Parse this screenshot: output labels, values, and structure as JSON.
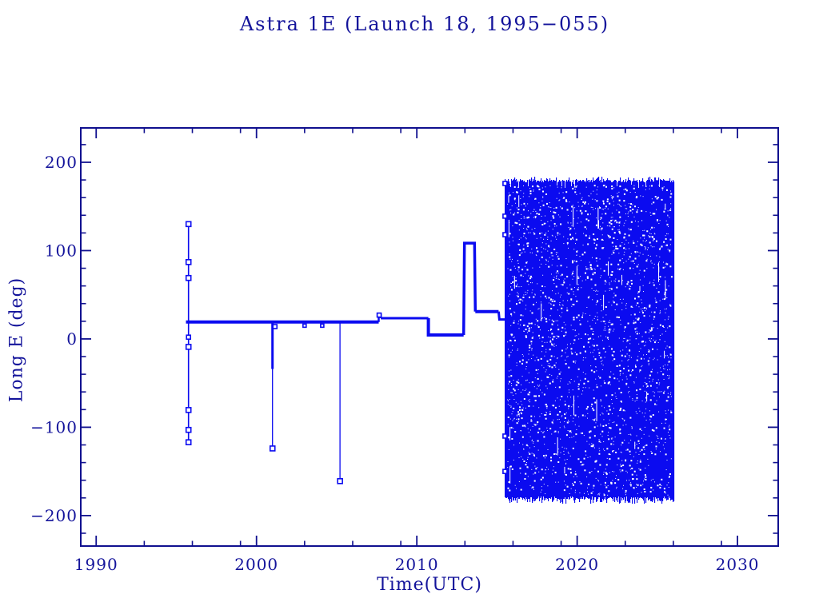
{
  "colors": {
    "background": "#ffffff",
    "ink": "#14149b",
    "frame": "#10108f",
    "data": "#0b0bf0",
    "marker_fill": "#ffffff"
  },
  "chart_data": {
    "type": "line",
    "title": "Astra 1E (Launch 18, 1995−055)",
    "xlabel": "Time(UTC)",
    "ylabel": "Long E (deg)",
    "grid": false,
    "legend": "none",
    "xlim": [
      1989.04,
      2032.54
    ],
    "ylim": [
      -234.5,
      238.9
    ],
    "x_major_ticks": [
      1990,
      2000,
      2010,
      2020,
      2030
    ],
    "x_tick_labels": [
      "1990",
      "2000",
      "2010",
      "2020",
      "2030"
    ],
    "x_minor_offsets": [
      3,
      6,
      9
    ],
    "y_major_ticks": [
      -200,
      -100,
      0,
      100,
      200
    ],
    "y_tick_labels": [
      "−200",
      "−100",
      "0",
      "100",
      "200"
    ],
    "y_minor_step": 20,
    "series": [
      {
        "name": "injection-1995",
        "width": 1.6,
        "points": [
          [
            1995.76,
            130
          ],
          [
            1995.76,
            -117
          ]
        ]
      },
      {
        "name": "station-19.2E",
        "width": 4,
        "points": [
          [
            1995.6,
            19.2
          ],
          [
            2007.62,
            19.2
          ]
        ]
      },
      {
        "name": "bump-2007",
        "width": 2.5,
        "points": [
          [
            2007.62,
            19.2
          ],
          [
            2007.62,
            27
          ],
          [
            2007.75,
            27
          ],
          [
            2007.75,
            23.5
          ]
        ]
      },
      {
        "name": "station-23.5E",
        "width": 3,
        "points": [
          [
            2007.75,
            23.5
          ],
          [
            2010.72,
            23.5
          ]
        ]
      },
      {
        "name": "station-5E",
        "width": 4,
        "points": [
          [
            2010.72,
            23.5
          ],
          [
            2010.72,
            4.5
          ],
          [
            2012.92,
            4.5
          ]
        ]
      },
      {
        "name": "station-108.5E",
        "width": 3.5,
        "points": [
          [
            2012.92,
            4.5
          ],
          [
            2012.97,
            108.5
          ],
          [
            2013.6,
            108.5
          ],
          [
            2013.65,
            31
          ]
        ]
      },
      {
        "name": "station-31E",
        "width": 4,
        "points": [
          [
            2013.65,
            31
          ],
          [
            2015.1,
            31
          ]
        ]
      },
      {
        "name": "station-22E",
        "width": 3,
        "points": [
          [
            2015.1,
            31
          ],
          [
            2015.15,
            22
          ],
          [
            2015.55,
            22
          ]
        ]
      },
      {
        "name": "spike-2001-thick",
        "width": 3,
        "points": [
          [
            2001.0,
            19.2
          ],
          [
            2001.0,
            -34
          ]
        ]
      },
      {
        "name": "spike-2001-thin",
        "width": 1.3,
        "points": [
          [
            2001.0,
            -34
          ],
          [
            2001.0,
            -124
          ]
        ]
      },
      {
        "name": "spike-2005",
        "width": 1.3,
        "points": [
          [
            2005.21,
            19.2
          ],
          [
            2005.21,
            -161
          ]
        ]
      }
    ],
    "markers": [
      {
        "t": 1995.76,
        "v": 130,
        "s": 6
      },
      {
        "t": 1995.76,
        "v": 87,
        "s": 6
      },
      {
        "t": 1995.76,
        "v": 69,
        "s": 6
      },
      {
        "t": 1995.76,
        "v": 2,
        "s": 5
      },
      {
        "t": 1995.76,
        "v": -9,
        "s": 6
      },
      {
        "t": 1995.76,
        "v": -80.5,
        "s": 6
      },
      {
        "t": 1995.76,
        "v": -103,
        "s": 6
      },
      {
        "t": 1995.76,
        "v": -117,
        "s": 6
      },
      {
        "t": 2001.0,
        "v": -124,
        "s": 6
      },
      {
        "t": 2005.21,
        "v": -161,
        "s": 6
      },
      {
        "t": 2007.65,
        "v": 27,
        "s": 5
      },
      {
        "t": 2001.15,
        "v": 14,
        "s": 5
      },
      {
        "t": 2003.0,
        "v": 15,
        "s": 4
      },
      {
        "t": 2004.1,
        "v": 15,
        "s": 4
      },
      {
        "t": 2015.5,
        "v": 176,
        "s": 5
      },
      {
        "t": 2015.5,
        "v": 139,
        "s": 5
      },
      {
        "t": 2015.5,
        "v": 118,
        "s": 5
      },
      {
        "t": 2015.5,
        "v": -110,
        "s": 5
      },
      {
        "t": 2015.5,
        "v": -150,
        "s": 5
      }
    ],
    "drift_block": {
      "t_start": 2015.5,
      "t_end": 2026.0,
      "v_top": 180,
      "v_bottom": -182,
      "edge_jitter": 4,
      "speckle_count": 2300,
      "seam_count": 26,
      "seed": 1337
    }
  }
}
